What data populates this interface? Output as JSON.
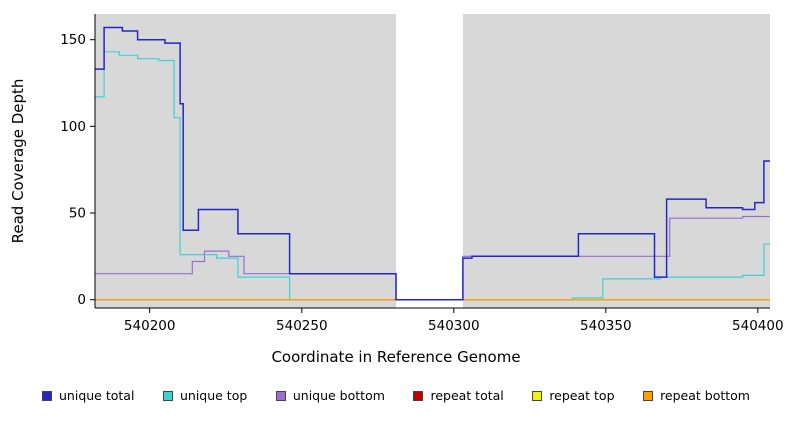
{
  "chart_data": {
    "type": "line",
    "subtype": "step",
    "title": "",
    "xlabel": "Coordinate in Reference Genome",
    "ylabel": "Read Coverage Depth",
    "xlim": [
      540182,
      540404
    ],
    "ylim": [
      0,
      160
    ],
    "xticks": [
      540200,
      540250,
      540300,
      540350,
      540400
    ],
    "yticks": [
      0,
      50,
      100,
      150
    ],
    "panel_color": "#d8d8d8",
    "gap_region": [
      540281,
      540303
    ],
    "grid": false,
    "legend_position": "bottom",
    "series": [
      {
        "name": "unique bottom",
        "color": "#9a6fd0",
        "width": 1.2,
        "points": [
          [
            540182,
            15
          ],
          [
            540214,
            15
          ],
          [
            540214,
            22
          ],
          [
            540218,
            22
          ],
          [
            540218,
            28
          ],
          [
            540226,
            28
          ],
          [
            540226,
            25
          ],
          [
            540231,
            25
          ],
          [
            540231,
            15
          ],
          [
            540281,
            15
          ],
          [
            540281,
            0
          ],
          [
            540303,
            0
          ],
          [
            540303,
            25
          ],
          [
            540371,
            25
          ],
          [
            540371,
            47
          ],
          [
            540395,
            47
          ],
          [
            540395,
            48
          ],
          [
            540404,
            48
          ]
        ]
      },
      {
        "name": "unique top",
        "color": "#3fd2d2",
        "width": 1.2,
        "points": [
          [
            540182,
            117
          ],
          [
            540185,
            117
          ],
          [
            540185,
            143
          ],
          [
            540190,
            143
          ],
          [
            540190,
            141
          ],
          [
            540196,
            141
          ],
          [
            540196,
            139
          ],
          [
            540203,
            139
          ],
          [
            540203,
            138
          ],
          [
            540208,
            138
          ],
          [
            540208,
            105
          ],
          [
            540210,
            105
          ],
          [
            540210,
            26
          ],
          [
            540222,
            26
          ],
          [
            540222,
            24
          ],
          [
            540229,
            24
          ],
          [
            540229,
            13
          ],
          [
            540246,
            13
          ],
          [
            540246,
            0
          ],
          [
            540339,
            0
          ],
          [
            540339,
            1
          ],
          [
            540349,
            1
          ],
          [
            540349,
            12
          ],
          [
            540368,
            12
          ],
          [
            540368,
            13
          ],
          [
            540395,
            13
          ],
          [
            540395,
            14
          ],
          [
            540402,
            14
          ],
          [
            540402,
            32
          ],
          [
            540404,
            32
          ]
        ]
      },
      {
        "name": "repeat total",
        "color": "#c00000",
        "width": 1.2,
        "points": [
          [
            540182,
            0
          ],
          [
            540404,
            0
          ]
        ]
      },
      {
        "name": "repeat top",
        "color": "#f2f20c",
        "width": 1.2,
        "points": [
          [
            540182,
            0
          ],
          [
            540404,
            0
          ]
        ]
      },
      {
        "name": "repeat bottom",
        "color": "#ff9e00",
        "width": 1.2,
        "points": [
          [
            540182,
            0
          ],
          [
            540404,
            0
          ]
        ]
      },
      {
        "name": "unique total",
        "color": "#2525cc",
        "width": 1.5,
        "points": [
          [
            540182,
            133
          ],
          [
            540185,
            133
          ],
          [
            540185,
            157
          ],
          [
            540191,
            157
          ],
          [
            540191,
            155
          ],
          [
            540196,
            155
          ],
          [
            540196,
            150
          ],
          [
            540205,
            150
          ],
          [
            540205,
            148
          ],
          [
            540210,
            148
          ],
          [
            540210,
            113
          ],
          [
            540211,
            113
          ],
          [
            540211,
            40
          ],
          [
            540216,
            40
          ],
          [
            540216,
            52
          ],
          [
            540229,
            52
          ],
          [
            540229,
            38
          ],
          [
            540246,
            38
          ],
          [
            540246,
            15
          ],
          [
            540281,
            15
          ],
          [
            540281,
            0
          ],
          [
            540303,
            0
          ],
          [
            540303,
            24
          ],
          [
            540306,
            24
          ],
          [
            540306,
            25
          ],
          [
            540341,
            25
          ],
          [
            540341,
            38
          ],
          [
            540366,
            38
          ],
          [
            540366,
            13
          ],
          [
            540370,
            13
          ],
          [
            540370,
            58
          ],
          [
            540383,
            58
          ],
          [
            540383,
            53
          ],
          [
            540395,
            53
          ],
          [
            540395,
            52
          ],
          [
            540399,
            52
          ],
          [
            540399,
            56
          ],
          [
            540402,
            56
          ],
          [
            540402,
            80
          ],
          [
            540404,
            80
          ]
        ]
      }
    ]
  },
  "legend": {
    "items": [
      {
        "label": "unique total",
        "color": "#2525cc"
      },
      {
        "label": "unique top",
        "color": "#3fd2d2"
      },
      {
        "label": "unique bottom",
        "color": "#9a6fd0"
      },
      {
        "label": "repeat total",
        "color": "#c00000"
      },
      {
        "label": "repeat top",
        "color": "#f2f20c"
      },
      {
        "label": "repeat bottom",
        "color": "#ff9e00"
      }
    ]
  }
}
